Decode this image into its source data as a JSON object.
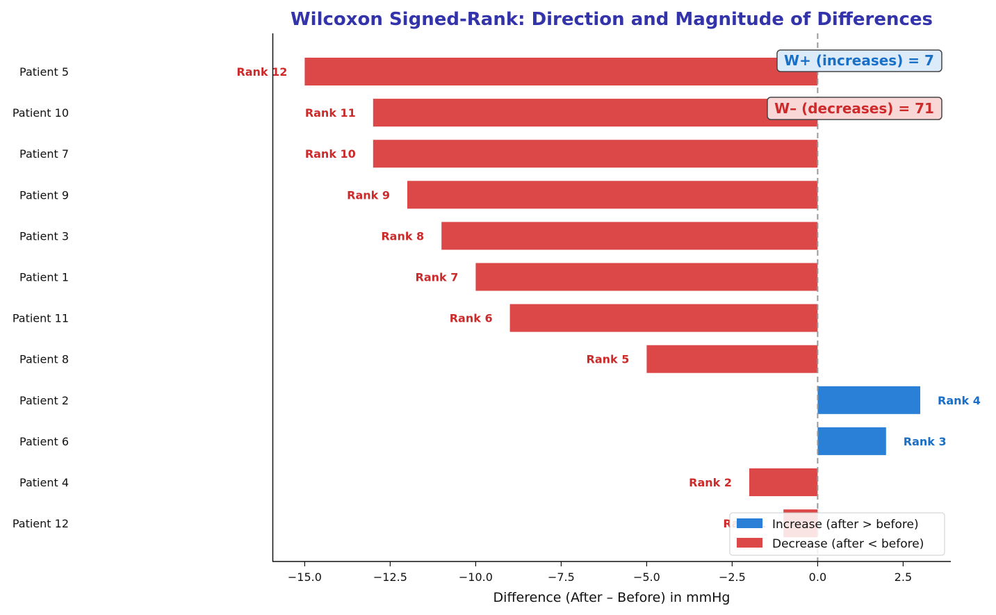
{
  "chart_data": {
    "type": "bar",
    "orientation": "horizontal",
    "title": "Wilcoxon Signed-Rank: Direction and Magnitude of Differences",
    "xlabel": "Difference (After – Before) in mmHg",
    "ylabel": "",
    "xlim": [
      -15.9,
      3.9
    ],
    "xticks": [
      -15.0,
      -12.5,
      -10.0,
      -7.5,
      -5.0,
      -2.5,
      0.0,
      2.5
    ],
    "xtick_labels": [
      "−15.0",
      "−12.5",
      "−10.0",
      "−7.5",
      "−5.0",
      "−2.5",
      "0.0",
      "2.5"
    ],
    "grid": false,
    "categories": [
      "Patient 5",
      "Patient 10",
      "Patient 7",
      "Patient 9",
      "Patient 3",
      "Patient 1",
      "Patient 11",
      "Patient 8",
      "Patient 2",
      "Patient 6",
      "Patient 4",
      "Patient 12"
    ],
    "values": [
      -15,
      -13,
      -13,
      -12,
      -11,
      -10,
      -9,
      -5,
      3,
      2,
      -2,
      -1
    ],
    "rank_labels": [
      "Rank 12",
      "Rank 11",
      "Rank 10",
      "Rank 9",
      "Rank 8",
      "Rank 7",
      "Rank 6",
      "Rank 5",
      "Rank 4",
      "Rank 3",
      "Rank 2",
      "Rank 1"
    ],
    "colors": {
      "increase": "#2a7fd6",
      "decrease": "#dc4848",
      "increase_text": "#1a6fc7",
      "decrease_text": "#cc2b2b",
      "zero_line": "#999999"
    },
    "legend": {
      "placement": "bottom-right",
      "entries": [
        {
          "label": "Increase (after > before)",
          "color": "#2a7fd6"
        },
        {
          "label": "Decrease (after < before)",
          "color": "#dc4848"
        }
      ]
    },
    "annotations": {
      "w_plus": "W+ (increases) = 7",
      "w_minus": "W– (decreases) = 71"
    }
  }
}
